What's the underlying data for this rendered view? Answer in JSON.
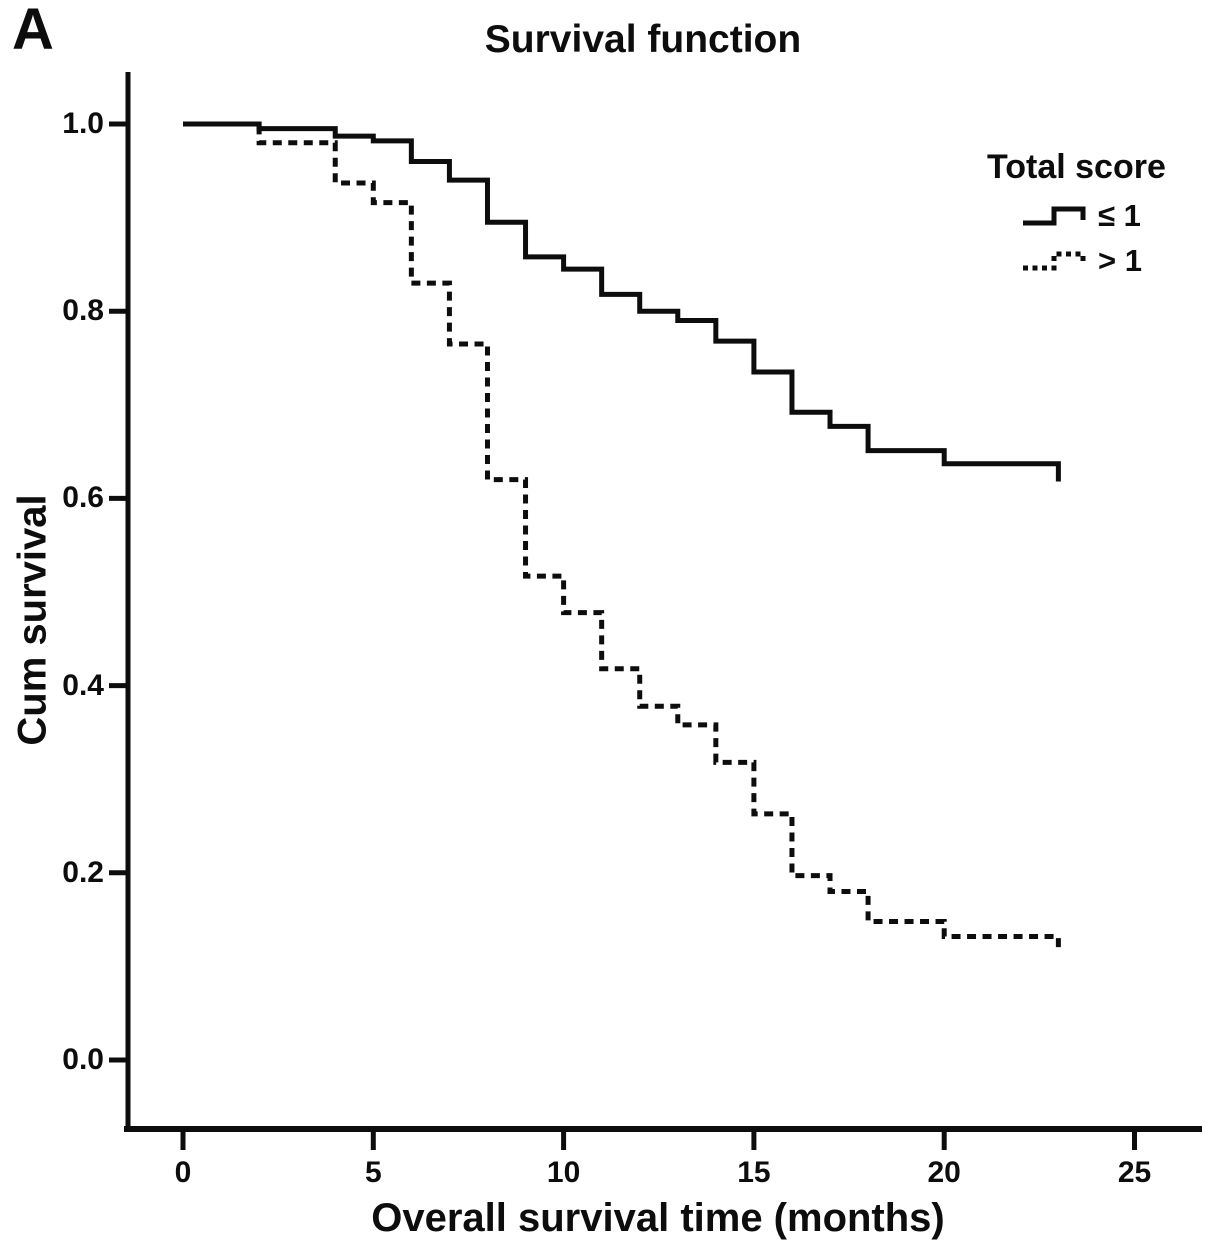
{
  "figure": {
    "panel_label": "A",
    "background_color": "#ffffff",
    "ink_color": "#0d0d0d"
  },
  "chart_data": {
    "type": "line",
    "subtype": "kaplan-meier-step-curves",
    "title": "Survival function",
    "xlabel": "Overall survival time (months)",
    "ylabel": "Cum survival",
    "grid": false,
    "xlim": [
      0,
      26.8
    ],
    "ylim": [
      0.0,
      1.06
    ],
    "x_ticks": [
      {
        "v": 0,
        "label": "0"
      },
      {
        "v": 5,
        "label": "5"
      },
      {
        "v": 10,
        "label": "10"
      },
      {
        "v": 15,
        "label": "15"
      },
      {
        "v": 20,
        "label": "20"
      },
      {
        "v": 25,
        "label": "25"
      }
    ],
    "y_ticks": [
      {
        "v": 1.0,
        "label": "1.0"
      },
      {
        "v": 0.8,
        "label": "0.8"
      },
      {
        "v": 0.6,
        "label": "0.6"
      },
      {
        "v": 0.4,
        "label": "0.4"
      },
      {
        "v": 0.2,
        "label": "0.2"
      },
      {
        "v": 0.0,
        "label": "0.0"
      }
    ],
    "legend": {
      "title": "Total score",
      "position": "upper right"
    },
    "series": [
      {
        "name": "≤ 1",
        "line_style": "solid",
        "color": "#0d0d0d",
        "steps": [
          [
            0,
            1.0
          ],
          [
            2,
            0.995
          ],
          [
            4,
            0.987
          ],
          [
            5,
            0.982
          ],
          [
            6,
            0.96
          ],
          [
            7,
            0.94
          ],
          [
            8,
            0.895
          ],
          [
            9,
            0.858
          ],
          [
            10,
            0.845
          ],
          [
            11,
            0.818
          ],
          [
            12,
            0.8
          ],
          [
            13,
            0.79
          ],
          [
            14,
            0.768
          ],
          [
            15,
            0.735
          ],
          [
            16,
            0.692
          ],
          [
            17,
            0.677
          ],
          [
            18,
            0.651
          ],
          [
            20,
            0.637
          ]
        ],
        "end_point": [
          23,
          0.618
        ]
      },
      {
        "name": "> 1",
        "line_style": "dashed",
        "color": "#0d0d0d",
        "steps": [
          [
            0,
            1.0
          ],
          [
            2,
            0.98
          ],
          [
            4,
            0.937
          ],
          [
            5,
            0.916
          ],
          [
            6,
            0.83
          ],
          [
            7,
            0.765
          ],
          [
            8,
            0.62
          ],
          [
            9,
            0.517
          ],
          [
            10,
            0.478
          ],
          [
            11,
            0.418
          ],
          [
            12,
            0.378
          ],
          [
            13,
            0.358
          ],
          [
            14,
            0.318
          ],
          [
            15,
            0.263
          ],
          [
            16,
            0.197
          ],
          [
            17,
            0.18
          ],
          [
            18,
            0.148
          ],
          [
            20,
            0.132
          ]
        ],
        "end_point": [
          23,
          0.116
        ]
      }
    ]
  }
}
